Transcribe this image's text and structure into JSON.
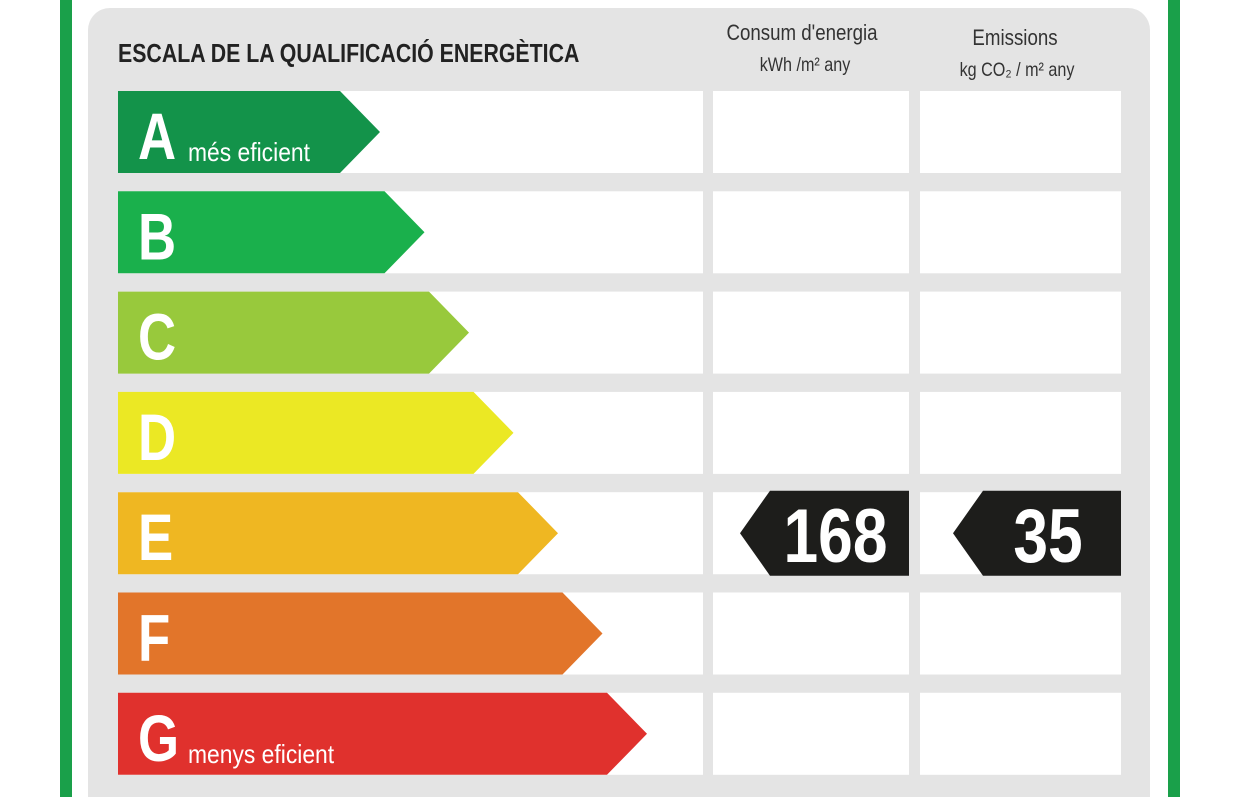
{
  "header": {
    "title": "ESCALA DE LA QUALIFICACIÓ ENERGÈTICA",
    "consumption": {
      "label": "Consum d'energia",
      "unit": "kWh /m² any"
    },
    "emissions": {
      "label": "Emissions",
      "unit": "kg CO₂ / m² any"
    }
  },
  "rows": [
    {
      "letter": "A",
      "note": "més eficient",
      "color": "#13934a"
    },
    {
      "letter": "B",
      "color": "#1ab04c"
    },
    {
      "letter": "C",
      "color": "#98c93c"
    },
    {
      "letter": "D",
      "color": "#ebe824"
    },
    {
      "letter": "E",
      "color": "#efb722",
      "consumption": 168,
      "emissions": 35
    },
    {
      "letter": "F",
      "color": "#e2752a"
    },
    {
      "letter": "G",
      "note": "menys eficient",
      "color": "#e0312d"
    }
  ]
}
